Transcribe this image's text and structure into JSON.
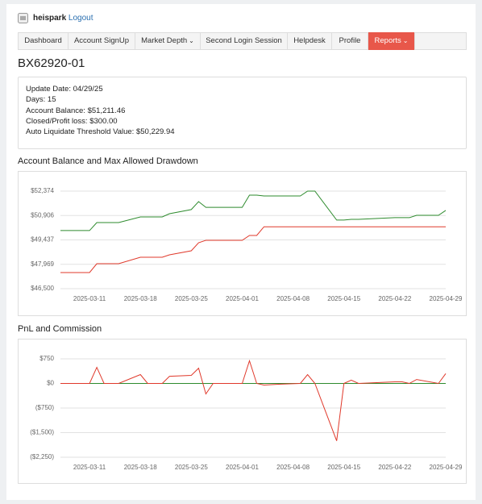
{
  "header": {
    "user": "heispark",
    "logout": "Logout"
  },
  "nav": {
    "items": [
      "Dashboard",
      "Account SignUp",
      "Market Depth",
      "Second Login Session",
      "Helpdesk",
      "Profile",
      "Reports"
    ],
    "active": 6
  },
  "account": {
    "title": "BX62920-01",
    "lines": [
      "Update Date: 04/29/25",
      "Days: 15",
      "Account Balance: $51,211.46",
      "Closed/Profit loss: $300.00",
      "Auto Liquidate Threshold Value: $50,229.94"
    ]
  },
  "chart_data": [
    {
      "type": "line",
      "title": "Account Balance and Max Allowed Drawdown",
      "x": [
        "2025-03-07",
        "2025-03-11",
        "2025-03-12",
        "2025-03-13",
        "2025-03-15",
        "2025-03-18",
        "2025-03-19",
        "2025-03-21",
        "2025-03-22",
        "2025-03-25",
        "2025-03-26",
        "2025-03-27",
        "2025-03-28",
        "2025-04-01",
        "2025-04-02",
        "2025-04-03",
        "2025-04-04",
        "2025-04-06",
        "2025-04-09",
        "2025-04-10",
        "2025-04-11",
        "2025-04-14",
        "2025-04-15",
        "2025-04-16",
        "2025-04-17",
        "2025-04-22",
        "2025-04-23",
        "2025-04-24",
        "2025-04-25",
        "2025-04-28",
        "2025-04-29"
      ],
      "series": [
        {
          "color": "#2e8b2e",
          "values": [
            50000,
            50000,
            50480,
            50480,
            50480,
            50820,
            50820,
            50820,
            51015,
            51260,
            51745,
            51400,
            51400,
            51400,
            52130,
            52130,
            52085,
            52085,
            52085,
            52374,
            52374,
            50630,
            50630,
            50675,
            50675,
            50775,
            50775,
            50775,
            50920,
            50920,
            51211.46
          ]
        },
        {
          "color": "#e0392b",
          "values": [
            47470,
            47470,
            48005,
            48005,
            48005,
            48395,
            48395,
            48395,
            48540,
            48780,
            49265,
            49415,
            49415,
            49415,
            49705,
            49705,
            50229.94,
            50229.94,
            50229.94,
            50229.94,
            50229.94,
            50229.94,
            50229.94,
            50229.94,
            50229.94,
            50229.94,
            50229.94,
            50229.94,
            50229.94,
            50229.94,
            50229.94
          ]
        }
      ],
      "xlim": [
        "2025-03-07",
        "2025-04-29"
      ],
      "xticks": [
        "2025-03-11",
        "2025-03-18",
        "2025-03-25",
        "2025-04-01",
        "2025-04-08",
        "2025-04-15",
        "2025-04-22",
        "2025-04-29"
      ],
      "ylim": [
        46500,
        52374
      ],
      "yticks": [
        {
          "value": 46500,
          "label": "$46,500"
        },
        {
          "value": 47969,
          "label": "$47,969"
        },
        {
          "value": 49437,
          "label": "$49,437"
        },
        {
          "value": 50906,
          "label": "$50,906"
        },
        {
          "value": 52374,
          "label": "$52,374"
        }
      ],
      "grid": true
    },
    {
      "type": "line",
      "title": "PnL and Commission",
      "x": [
        "2025-03-07",
        "2025-03-11",
        "2025-03-12",
        "2025-03-13",
        "2025-03-15",
        "2025-03-18",
        "2025-03-19",
        "2025-03-21",
        "2025-03-22",
        "2025-03-25",
        "2025-03-26",
        "2025-03-27",
        "2025-03-28",
        "2025-04-01",
        "2025-04-02",
        "2025-04-03",
        "2025-04-04",
        "2025-04-06",
        "2025-04-09",
        "2025-04-10",
        "2025-04-11",
        "2025-04-14",
        "2025-04-15",
        "2025-04-16",
        "2025-04-17",
        "2025-04-22",
        "2025-04-23",
        "2025-04-24",
        "2025-04-25",
        "2025-04-28",
        "2025-04-29"
      ],
      "series": [
        {
          "color": "#2e8b2e",
          "values": [
            0,
            0,
            0,
            0,
            0,
            0,
            0,
            0,
            0,
            0,
            0,
            0,
            0,
            0,
            0,
            0,
            0,
            0,
            0,
            0,
            0,
            0,
            0,
            0,
            0,
            0,
            0,
            0,
            0,
            0,
            0
          ]
        },
        {
          "color": "#e0392b",
          "values": [
            0,
            0,
            490,
            0,
            0,
            270,
            0,
            0,
            220,
            245,
            465,
            -320,
            0,
            0,
            690,
            0,
            -50,
            -25,
            0,
            270,
            0,
            -1750,
            0,
            100,
            0,
            50,
            50,
            0,
            120,
            0,
            300
          ]
        }
      ],
      "xlim": [
        "2025-03-07",
        "2025-04-29"
      ],
      "xticks": [
        "2025-03-11",
        "2025-03-18",
        "2025-03-25",
        "2025-04-01",
        "2025-04-08",
        "2025-04-15",
        "2025-04-22",
        "2025-04-29"
      ],
      "ylim": [
        -2250,
        750
      ],
      "yticks": [
        {
          "value": -2250,
          "label": "($2,250)"
        },
        {
          "value": -1500,
          "label": "($1,500)"
        },
        {
          "value": -750,
          "label": "($750)"
        },
        {
          "value": 0,
          "label": "$0"
        },
        {
          "value": 750,
          "label": "$750"
        }
      ],
      "grid": true
    }
  ]
}
